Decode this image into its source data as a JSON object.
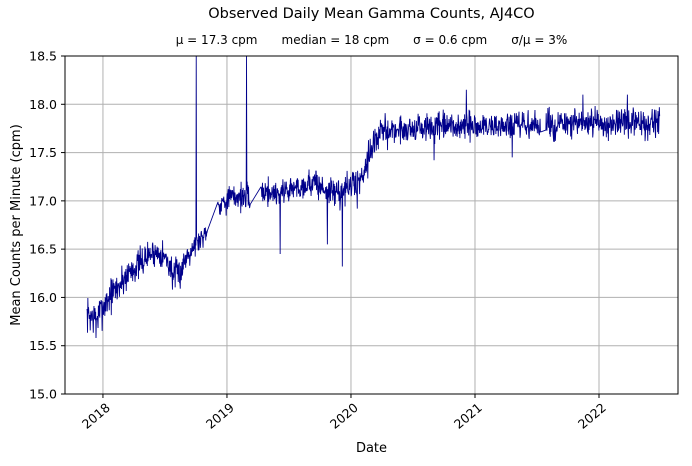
{
  "chart_data": {
    "type": "line",
    "title": "Observed Daily Mean Gamma Counts, AJ4CO",
    "stats": [
      "μ = 17.3 cpm",
      "median = 18 cpm",
      "σ = 0.6 cpm",
      "σ/μ = 3%"
    ],
    "xlabel": "Date",
    "ylabel": "Mean Counts per Minute (cpm)",
    "x_unit": "decimal_year",
    "xlim": [
      2017.694,
      2022.637
    ],
    "ylim": [
      15.0,
      18.5
    ],
    "xticks": [
      2018,
      2019,
      2020,
      2021,
      2022
    ],
    "yticks": [
      15.0,
      15.5,
      16.0,
      16.5,
      17.0,
      17.5,
      18.0,
      18.5
    ],
    "x_tick_rotation": -40,
    "grid": true,
    "grid_color": "#b0b0b0",
    "spine_color": "#000000",
    "line_color": "#00008b",
    "background_color": "#ffffff",
    "legend": "none",
    "series": [
      {
        "name": "daily-mean-gamma-counts",
        "points_per_year": 365,
        "seed": 7,
        "trend_format": "[decimal_year, mean_cpm, noise_sigma_cpm]",
        "trend": [
          [
            2017.87,
            15.82,
            0.09
          ],
          [
            2017.95,
            15.78,
            0.09
          ],
          [
            2018.0,
            15.9,
            0.09
          ],
          [
            2018.06,
            16.02,
            0.09
          ],
          [
            2018.13,
            16.12,
            0.09
          ],
          [
            2018.22,
            16.28,
            0.08
          ],
          [
            2018.3,
            16.35,
            0.08
          ],
          [
            2018.38,
            16.45,
            0.07
          ],
          [
            2018.46,
            16.47,
            0.07
          ],
          [
            2018.52,
            16.38,
            0.08
          ],
          [
            2018.57,
            16.22,
            0.08
          ],
          [
            2018.62,
            16.25,
            0.08
          ],
          [
            2018.68,
            16.45,
            0.07
          ],
          [
            2018.74,
            16.55,
            0.06
          ],
          [
            2018.8,
            16.62,
            0.06
          ],
          [
            2018.845,
            16.72,
            0.05
          ],
          [
            2018.925,
            16.95,
            0.05
          ],
          [
            2019.0,
            17.02,
            0.07
          ],
          [
            2019.1,
            17.05,
            0.07
          ],
          [
            2019.2,
            17.02,
            0.07
          ],
          [
            2019.3,
            17.1,
            0.07
          ],
          [
            2019.4,
            17.08,
            0.07
          ],
          [
            2019.5,
            17.12,
            0.07
          ],
          [
            2019.6,
            17.15,
            0.07
          ],
          [
            2019.7,
            17.2,
            0.07
          ],
          [
            2019.8,
            17.1,
            0.08
          ],
          [
            2019.9,
            17.08,
            0.08
          ],
          [
            2020.0,
            17.15,
            0.08
          ],
          [
            2020.08,
            17.22,
            0.08
          ],
          [
            2020.16,
            17.55,
            0.08
          ],
          [
            2020.25,
            17.72,
            0.075
          ],
          [
            2020.5,
            17.75,
            0.075
          ],
          [
            2021.0,
            17.77,
            0.075
          ],
          [
            2021.5,
            17.78,
            0.075
          ],
          [
            2022.0,
            17.8,
            0.075
          ],
          [
            2022.49,
            17.8,
            0.075
          ]
        ],
        "outliers_format": "[decimal_year, cpm] (values above ylim are clipped at axis top)",
        "outliers": [
          [
            2017.945,
            15.58
          ],
          [
            2018.752,
            19.5
          ],
          [
            2019.157,
            19.5
          ],
          [
            2019.43,
            16.45
          ],
          [
            2019.81,
            16.55
          ],
          [
            2019.93,
            16.32
          ],
          [
            2020.05,
            16.92
          ],
          [
            2020.67,
            17.42
          ],
          [
            2020.93,
            18.15
          ],
          [
            2021.3,
            17.45
          ],
          [
            2021.87,
            18.1
          ],
          [
            2022.23,
            18.1
          ]
        ],
        "gaps": [
          [
            2018.845,
            2018.925
          ],
          [
            2019.19,
            2019.27
          ],
          [
            2021.53,
            2021.57
          ]
        ]
      }
    ]
  }
}
